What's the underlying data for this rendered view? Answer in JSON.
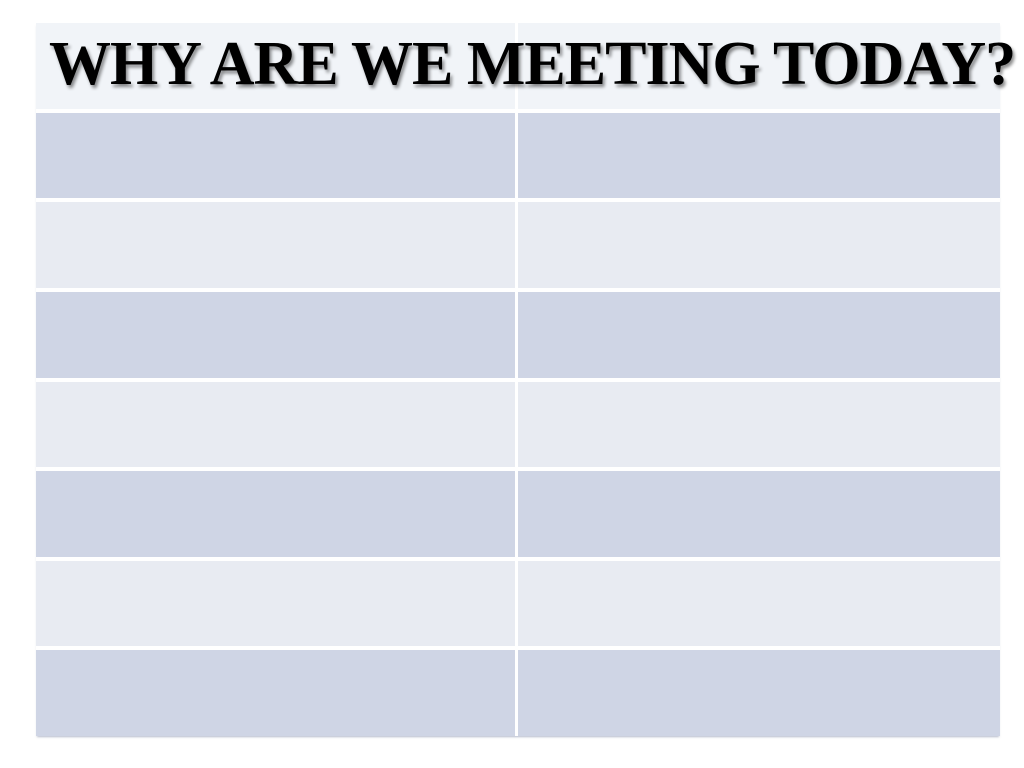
{
  "slide": {
    "title": "WHY ARE WE MEETING TODAY?"
  },
  "table": {
    "rows": [
      {
        "shade": "dark",
        "cells": [
          "",
          ""
        ]
      },
      {
        "shade": "light",
        "cells": [
          "",
          ""
        ]
      },
      {
        "shade": "dark",
        "cells": [
          "",
          ""
        ]
      },
      {
        "shade": "light",
        "cells": [
          "",
          ""
        ]
      },
      {
        "shade": "dark",
        "cells": [
          "",
          ""
        ]
      },
      {
        "shade": "light",
        "cells": [
          "",
          ""
        ]
      },
      {
        "shade": "dark",
        "cells": [
          "",
          ""
        ]
      }
    ],
    "colors": {
      "page_bg": "#ffffff",
      "header_bg": "#f1f4f8",
      "row_dark_bg": "#cfd5e5",
      "row_light_bg": "#e8ebf2",
      "divider": "#ffffff",
      "title_color": "#000000"
    }
  }
}
